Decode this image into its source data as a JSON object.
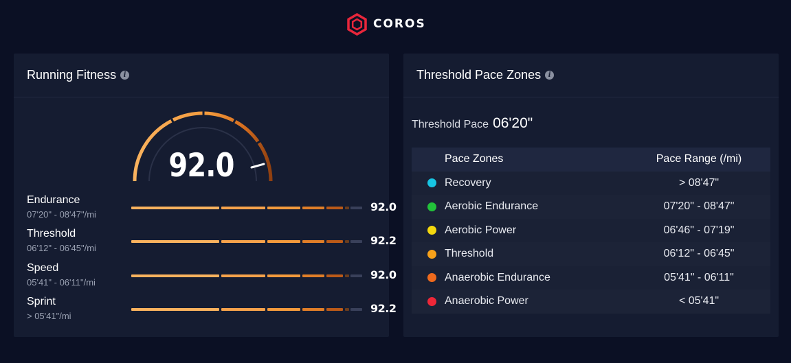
{
  "brand": {
    "name": "COROS",
    "accent": "#e8263b"
  },
  "running_fitness": {
    "title": "Running Fitness",
    "score": "92.0",
    "rows": [
      {
        "name": "Endurance",
        "range": "07'20\" - 08'47\"/mi",
        "value": "92.0"
      },
      {
        "name": "Threshold",
        "range": "06'12\" - 06'45\"/mi",
        "value": "92.2"
      },
      {
        "name": "Speed",
        "range": "05'41\" - 06'11\"/mi",
        "value": "92.0"
      },
      {
        "name": "Sprint",
        "range": "> 05'41\"/mi",
        "value": "92.2"
      }
    ]
  },
  "threshold_zones": {
    "title": "Threshold Pace Zones",
    "threshold_label": "Threshold Pace",
    "threshold_value": "06'20\"",
    "col_zone": "Pace Zones",
    "col_range": "Pace Range (/mi)",
    "zones": [
      {
        "name": "Recovery",
        "range": "> 08'47\"",
        "color": "#17c5e3"
      },
      {
        "name": "Aerobic Endurance",
        "range": "07'20\" - 08'47\"",
        "color": "#22c23a"
      },
      {
        "name": "Aerobic Power",
        "range": "06'46\" - 07'19\"",
        "color": "#f4d80e"
      },
      {
        "name": "Threshold",
        "range": "06'12\" - 06'45\"",
        "color": "#f7a11a"
      },
      {
        "name": "Anaerobic Endurance",
        "range": "05'41\" - 06'11\"",
        "color": "#ef6a1d"
      },
      {
        "name": "Anaerobic Power",
        "range": "< 05'41\"",
        "color": "#ee2738"
      }
    ]
  }
}
